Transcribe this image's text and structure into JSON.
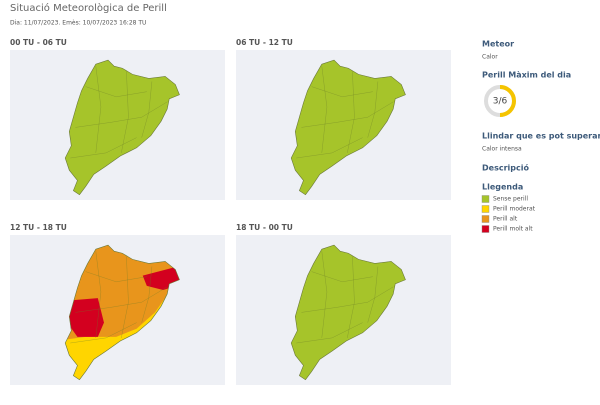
{
  "header": {
    "title": "Situació Meteorològica de Perill",
    "subtitle": "Dia: 11/07/2023. Emès: 10/07/2023 16:28 TU"
  },
  "maps": [
    {
      "label": "00 TU - 06 TU"
    },
    {
      "label": "06 TU - 12 TU"
    },
    {
      "label": "12 TU - 18 TU"
    },
    {
      "label": "18 TU - 00 TU"
    }
  ],
  "sidebar": {
    "meteor": {
      "title": "Meteor",
      "value": "Calor"
    },
    "max_danger": {
      "title": "Perill Màxim del dia",
      "value": 3,
      "max": 6,
      "label": "3/6",
      "color": "#f5c400"
    },
    "threshold": {
      "title": "Llindar que es pot superar",
      "value": "Calor intensa"
    },
    "description": {
      "title": "Descripció"
    },
    "legend": {
      "title": "Llegenda",
      "items": [
        {
          "label": "Sense perill",
          "color": "#a6c42a"
        },
        {
          "label": "Perill moderat",
          "color": "#ffd500"
        },
        {
          "label": "Perill alt",
          "color": "#e8951c"
        },
        {
          "label": "Perill molt alt",
          "color": "#d3001f"
        }
      ]
    }
  }
}
